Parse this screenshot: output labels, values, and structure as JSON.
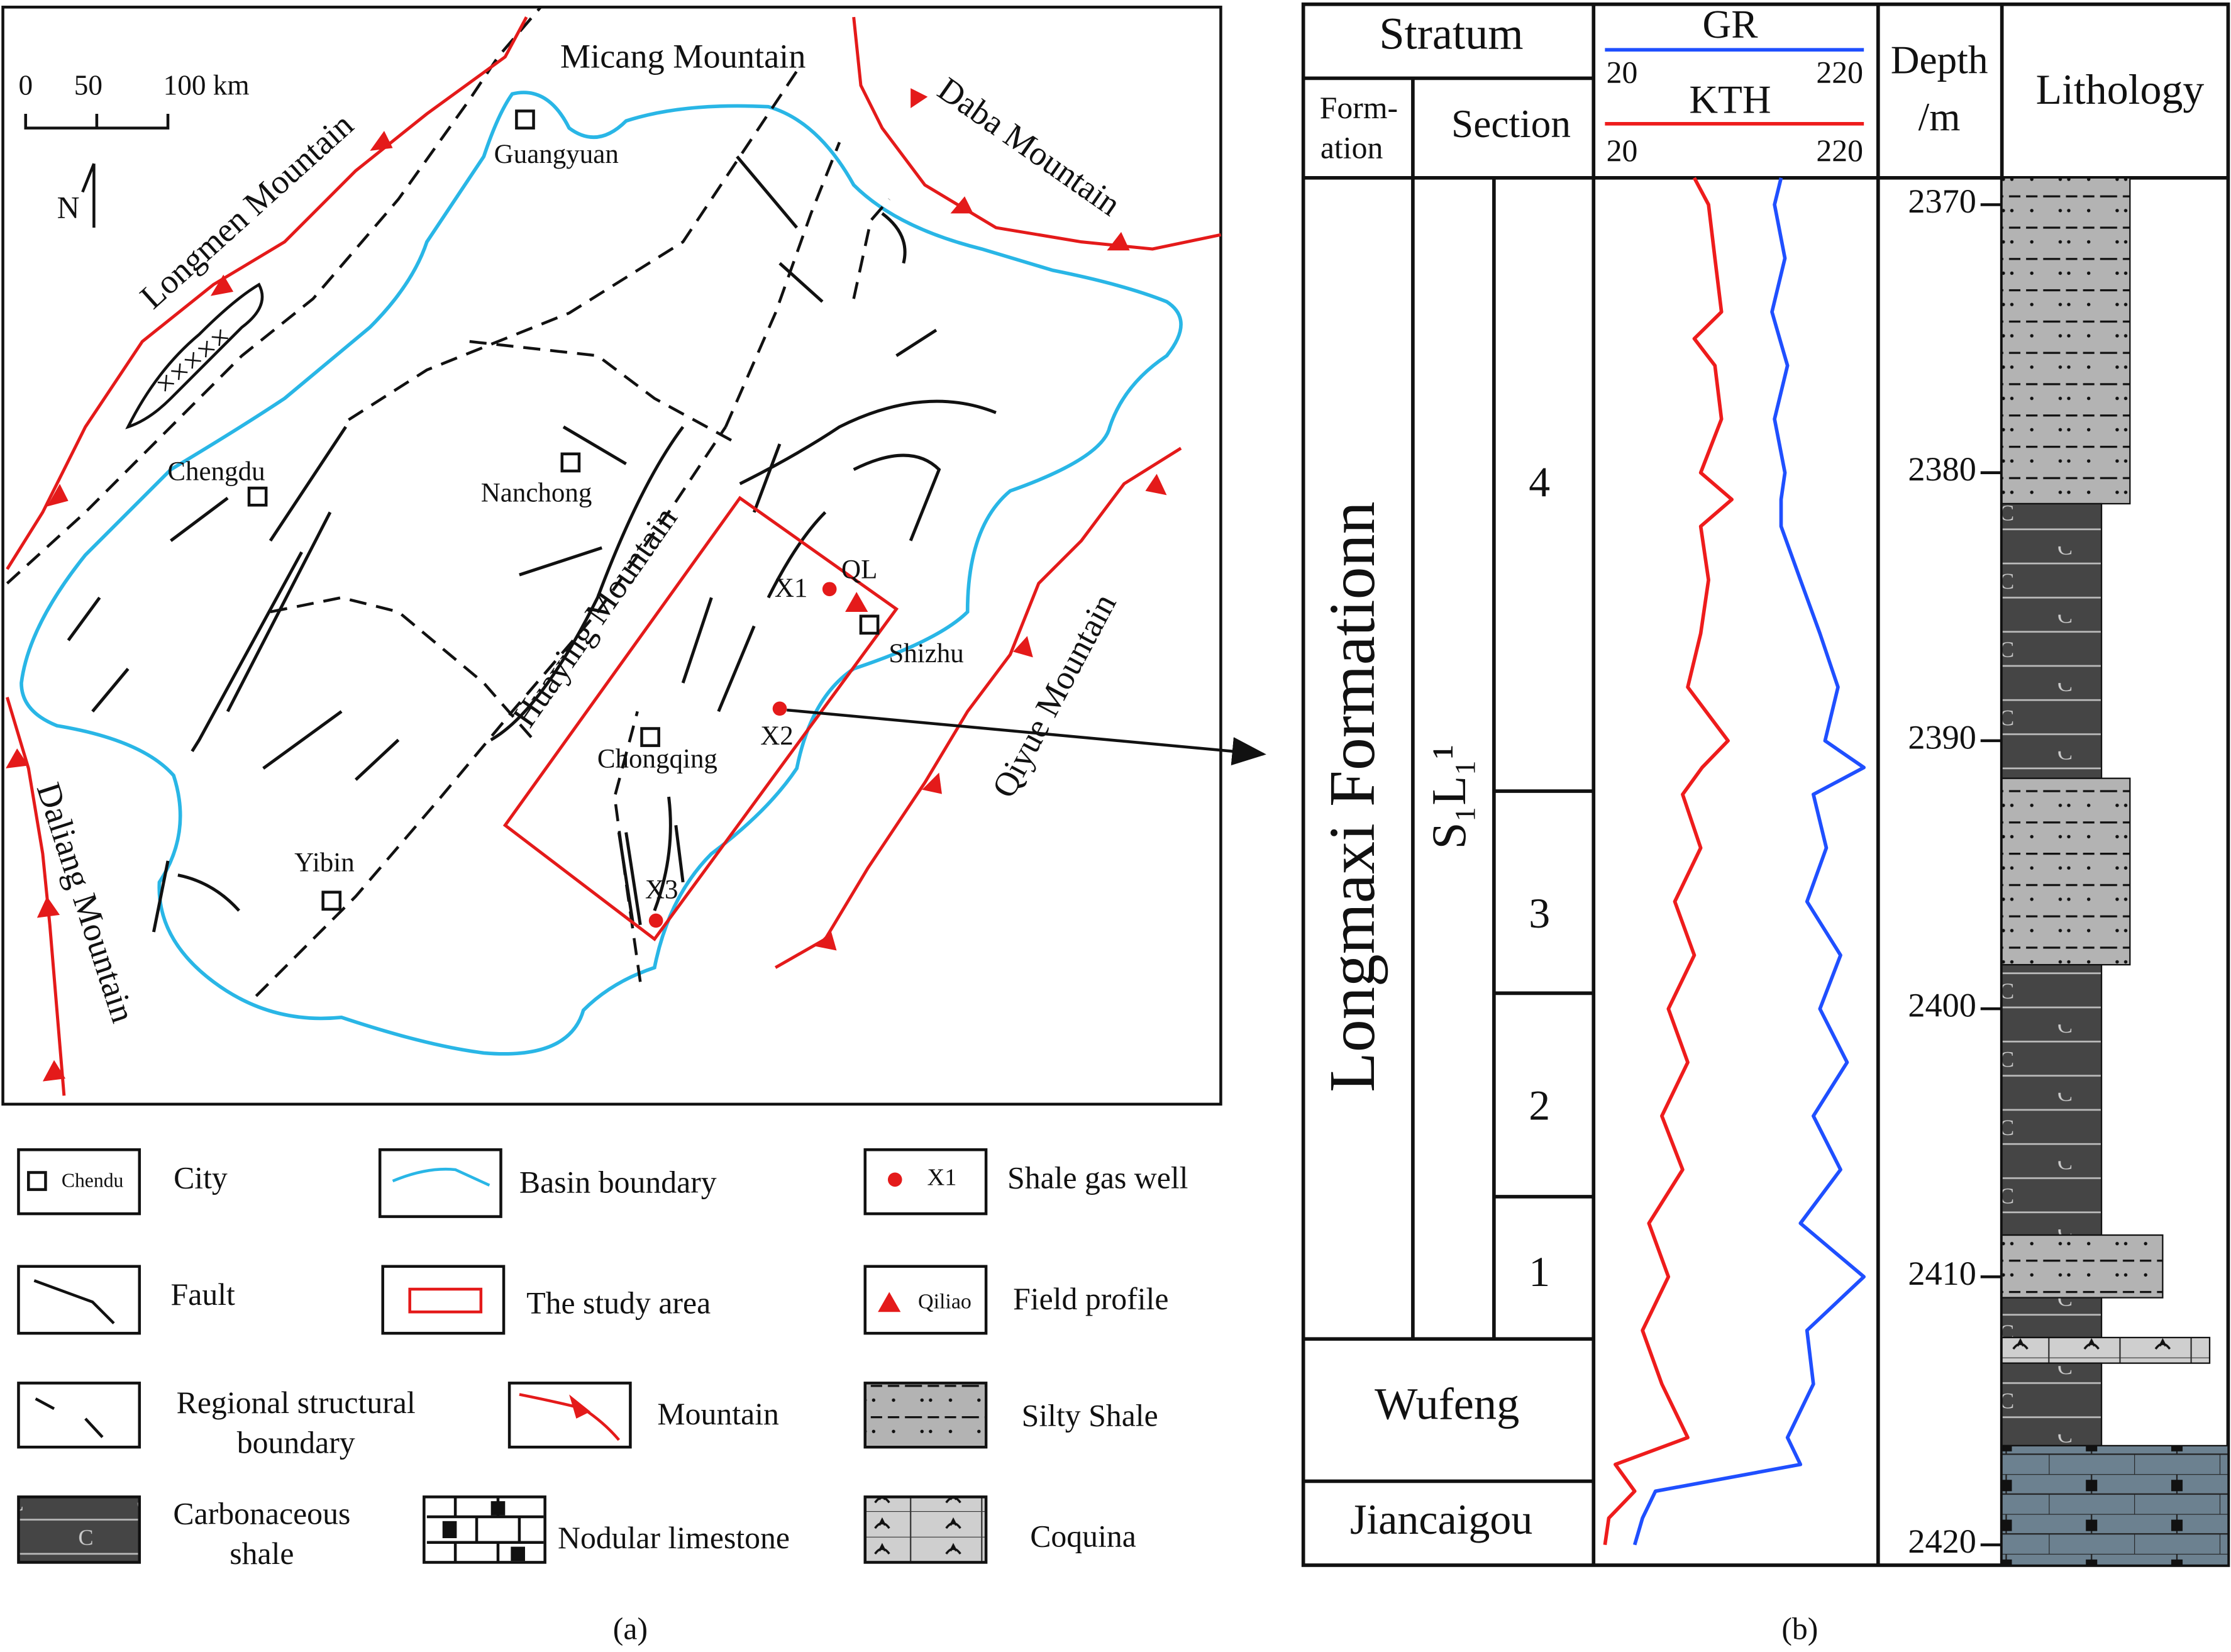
{
  "map": {
    "caption": "(a)",
    "scale_labels": [
      "0",
      "50",
      "100 km"
    ],
    "north": "N",
    "labels": [
      "Micang Mountain",
      "Guangyuan",
      "Daba Mountain",
      "Longmen Mountain",
      "Chengdu",
      "Nanchong",
      "Huaying Mountain",
      "X1",
      "QL",
      "Shizhu",
      "X2",
      "Chongqing",
      "Yibin",
      "X3",
      "Qiyue Mountain",
      "Daliang Mountain"
    ],
    "legend": [
      {
        "label": "City",
        "sample": "Chendu"
      },
      {
        "label": "Basin boundary"
      },
      {
        "label": "Shale gas well",
        "sample": "X1"
      },
      {
        "label": "Fault"
      },
      {
        "label": "The study area"
      },
      {
        "label": "Field profile",
        "sample": "Qiliao"
      },
      {
        "label": [
          "Regional structural",
          "boundary"
        ]
      },
      {
        "label": "Mountain"
      },
      {
        "label": "Silty Shale"
      },
      {
        "label": [
          "Carbonaceous",
          "shale"
        ]
      },
      {
        "label": "Nodular limestone"
      },
      {
        "label": "Coquina"
      }
    ]
  },
  "column": {
    "caption": "(b)",
    "stratum": "Stratum",
    "formation_header": [
      "Form-",
      "ation"
    ],
    "section_header": "Section",
    "depth_header": [
      "Depth",
      "/m"
    ],
    "lithology_header": "Lithology",
    "formations": [
      "Longmaxi Formationn",
      "Wufeng",
      "Jiancaigou"
    ],
    "member": "S₁L₁¹",
    "sections": [
      "4",
      "3",
      "2",
      "1"
    ],
    "ylim": [
      2369,
      2420.6
    ],
    "yticks": [
      2370,
      2380,
      2390,
      2400,
      2410,
      2420
    ],
    "depth": [
      2369,
      2370,
      2372,
      2374,
      2375,
      2376,
      2378,
      2380,
      2381,
      2382,
      2384,
      2386,
      2388,
      2390,
      2391,
      2392,
      2394,
      2396,
      2398,
      2400,
      2402,
      2404,
      2406,
      2408,
      2410,
      2412,
      2414,
      2416,
      2417,
      2418,
      2419,
      2420
    ],
    "series": [
      {
        "name": "GR",
        "color": "#1f4fff",
        "xlim": [
          20,
          220
        ],
        "values": [
          156,
          151,
          159,
          149,
          155,
          161,
          151,
          159,
          156,
          156,
          171,
          186,
          200,
          190,
          220,
          181,
          191,
          176,
          202,
          186,
          207,
          181,
          202,
          171,
          220,
          176,
          181,
          161,
          171,
          59,
          49,
          43
        ]
      },
      {
        "name": "KTH",
        "color": "#ee1c1c",
        "xlim": [
          20,
          220
        ],
        "values": [
          89,
          100,
          105,
          110,
          89,
          105,
          110,
          94,
          118,
          94,
          100,
          94,
          84,
          115,
          95,
          80,
          94,
          74,
          89,
          69,
          84,
          64,
          80,
          54,
          69,
          49,
          64,
          84,
          28,
          43,
          23,
          20
        ]
      }
    ]
  }
}
